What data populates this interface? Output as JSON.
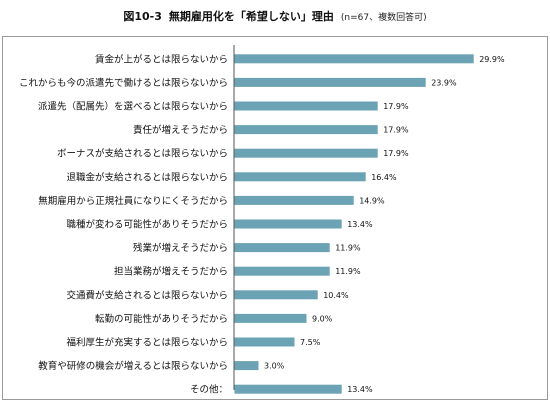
{
  "figure": {
    "title_prefix": "図10-3",
    "title_main": "無期雇用化を「希望しない」理由",
    "title_note": "(n=67、複数回答可)"
  },
  "chart_data": {
    "type": "bar",
    "orientation": "horizontal",
    "title": "図10-3 無期雇用化を「希望しない」理由 (n=67、複数回答可)",
    "xlabel": "",
    "ylabel": "",
    "unit": "%",
    "xlim": [
      0,
      32
    ],
    "grid": false,
    "legend": "none",
    "bar_color": "#6ba3b5",
    "categories": [
      "賃金が上がるとは限らないから",
      "これからも今の派遣先で働けるとは限らないから",
      "派遣先（配属先）を選べるとは限らないから",
      "責任が増えそうだから",
      "ボーナスが支給されるとは限らないから",
      "退職金が支給されるとは限らないから",
      "無期雇用から正規社員になりにくそうだから",
      "職種が変わる可能性がありそうだから",
      "残業が増えそうだから",
      "担当業務が増えそうだから",
      "交通費が支給されるとは限らないから",
      "転勤の可能性がありそうだから",
      "福利厚生が充実するとは限らないから",
      "教育や研修の機会が増えるとは限らないから",
      "その他："
    ],
    "values": [
      29.9,
      23.9,
      17.9,
      17.9,
      17.9,
      16.4,
      14.9,
      13.4,
      11.9,
      11.9,
      10.4,
      9.0,
      7.5,
      3.0,
      13.4
    ],
    "value_labels": [
      "29.9%",
      "23.9%",
      "17.9%",
      "17.9%",
      "17.9%",
      "16.4%",
      "14.9%",
      "13.4%",
      "11.9%",
      "11.9%",
      "10.4%",
      "9.0%",
      "7.5%",
      "3.0%",
      "13.4%"
    ]
  }
}
